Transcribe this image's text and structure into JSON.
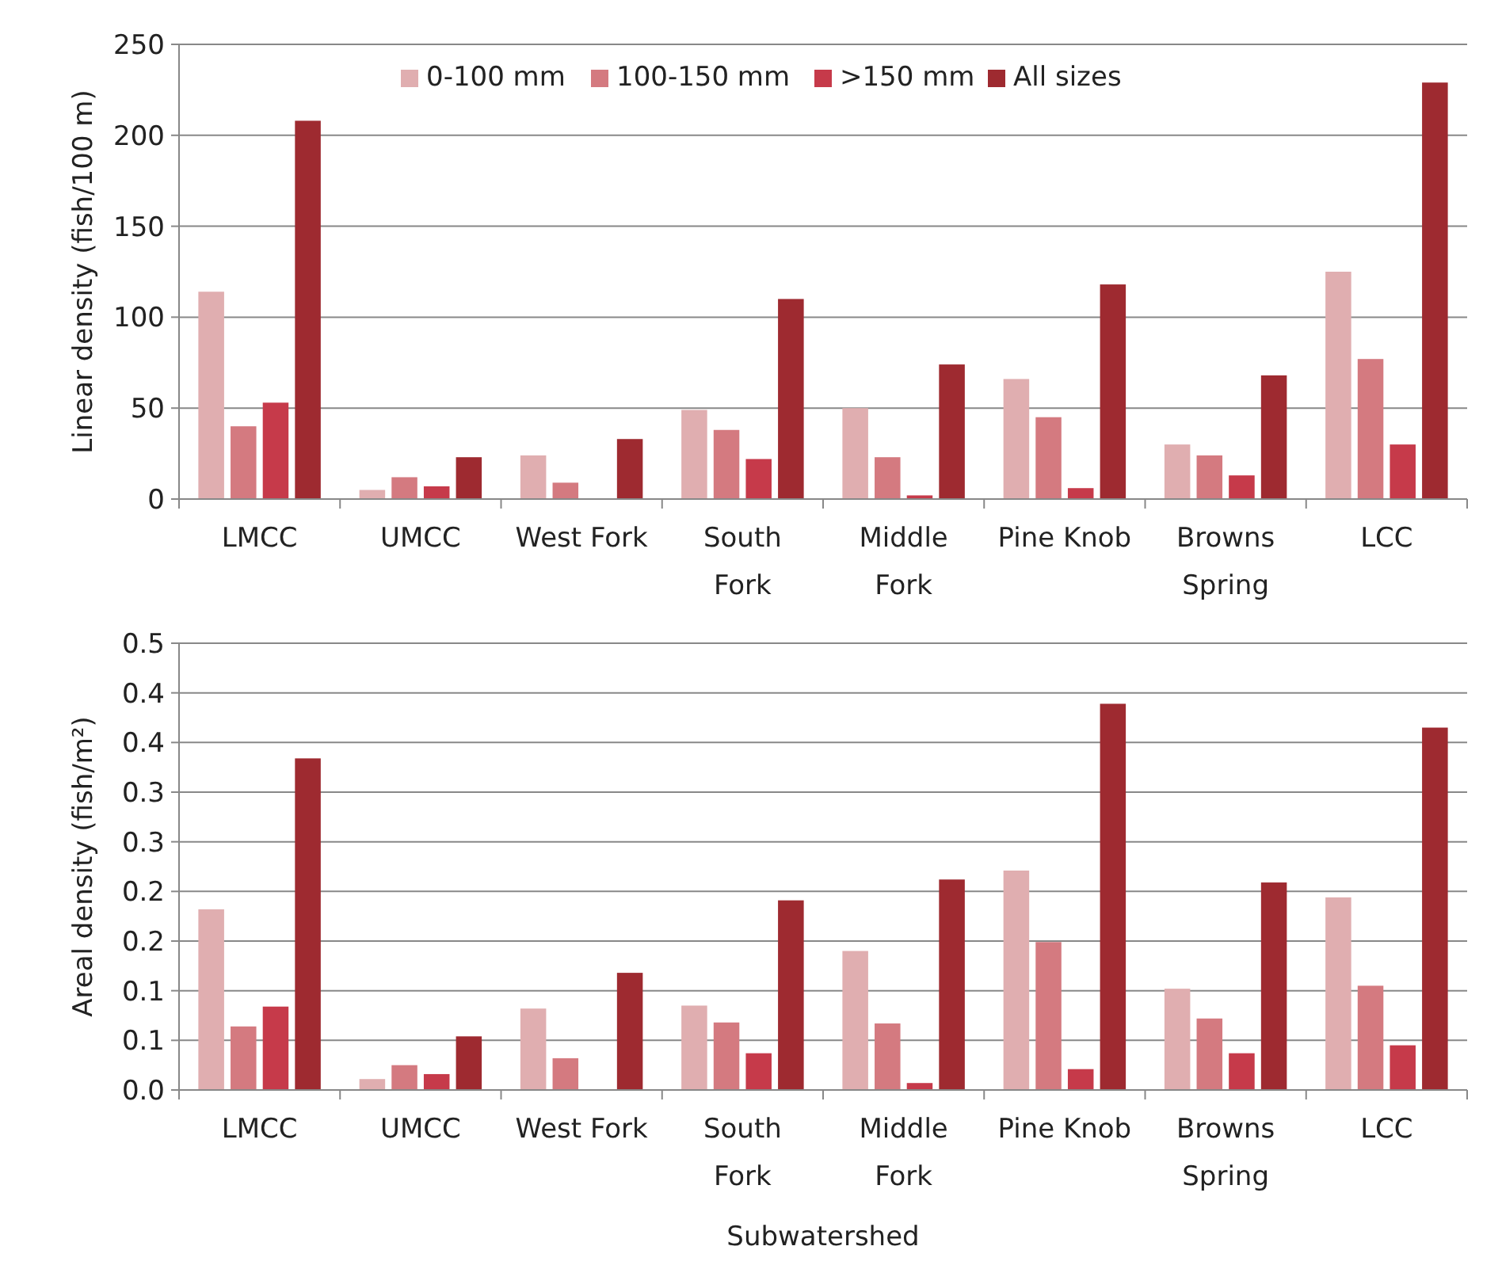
{
  "chart_data": [
    {
      "type": "bar",
      "ylabel": "Linear density (fish/100 m)",
      "categories": [
        "LMCC",
        "UMCC",
        "West Fork",
        "South Fork",
        "Middle Fork",
        "Pine Knob",
        "Browns Spring",
        "LCC"
      ],
      "series": [
        {
          "name": "0-100 mm",
          "color": "#e0aeb0",
          "values": [
            114,
            5,
            24,
            49,
            50,
            66,
            30,
            125
          ]
        },
        {
          "name": "100-150 mm",
          "color": "#d47a80",
          "values": [
            40,
            12,
            9,
            38,
            23,
            45,
            24,
            77
          ]
        },
        {
          "name": ">150 mm",
          "color": "#c63a4a",
          "values": [
            53,
            7,
            null,
            22,
            2,
            6,
            13,
            30
          ]
        },
        {
          "name": "All sizes",
          "color": "#9e2a30",
          "values": [
            208,
            23,
            33,
            110,
            74,
            118,
            68,
            229
          ]
        }
      ],
      "ylim": [
        0,
        250
      ],
      "yticks": [
        0,
        50,
        100,
        150,
        200,
        250
      ],
      "grid": "y",
      "legend": "top"
    },
    {
      "type": "bar",
      "xlabel": "Subwatershed",
      "ylabel": "Areal density (fish/m²)",
      "categories": [
        "LMCC",
        "UMCC",
        "West Fork",
        "South Fork",
        "Middle Fork",
        "Pine Knob",
        "Browns Spring",
        "LCC"
      ],
      "series": [
        {
          "color": "#e0aeb0",
          "values": [
            0.182,
            0.011,
            0.082,
            0.085,
            0.14,
            0.221,
            0.102,
            0.194
          ]
        },
        {
          "color": "#d47a80",
          "values": [
            0.064,
            0.025,
            0.032,
            0.068,
            0.067,
            0.149,
            0.072,
            0.105
          ]
        },
        {
          "color": "#c63a4a",
          "values": [
            0.084,
            0.016,
            null,
            0.037,
            0.007,
            0.021,
            0.037,
            0.045
          ]
        },
        {
          "color": "#9e2a30",
          "values": [
            0.334,
            0.054,
            0.118,
            0.191,
            0.212,
            0.389,
            0.209,
            0.365
          ]
        }
      ],
      "ylim": [
        0,
        0.45
      ],
      "yticks": [
        {
          "value": 0,
          "label": "0.0"
        },
        {
          "value": 0.05,
          "label": "0.1"
        },
        {
          "value": 0.1,
          "label": "0.1"
        },
        {
          "value": 0.15,
          "label": "0.2"
        },
        {
          "value": 0.2,
          "label": "0.2"
        },
        {
          "value": 0.25,
          "label": "0.3"
        },
        {
          "value": 0.3,
          "label": "0.3"
        },
        {
          "value": 0.35,
          "label": "0.4"
        },
        {
          "value": 0.4,
          "label": "0.4"
        },
        {
          "value": 0.45,
          "label": "0.5"
        }
      ],
      "grid": "y"
    }
  ]
}
